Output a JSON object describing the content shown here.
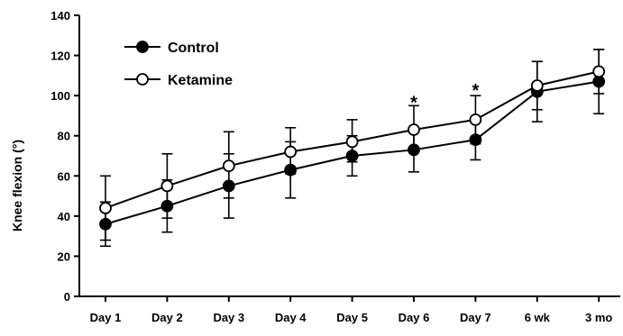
{
  "chart_data": {
    "type": "line",
    "title": "",
    "xlabel": "",
    "ylabel": "Knee flexion (°)",
    "ylim": [
      0,
      140
    ],
    "yticks": [
      0,
      20,
      40,
      60,
      80,
      100,
      120,
      140
    ],
    "categories": [
      "Day 1",
      "Day 2",
      "Day 3",
      "Day 4",
      "Day 5",
      "Day 6",
      "Day 7",
      "6 wk",
      "3 mo"
    ],
    "grid": false,
    "legend_position": "top-left",
    "series": [
      {
        "name": "Control",
        "marker": "filled-circle",
        "color": "#000000",
        "values": [
          36,
          45,
          55,
          63,
          70,
          73,
          78,
          102,
          107
        ],
        "error_low": [
          25,
          32,
          39,
          49,
          60,
          62,
          68,
          87,
          91
        ],
        "error_high": [
          47,
          58,
          71,
          77,
          80,
          84,
          88,
          117,
          123
        ]
      },
      {
        "name": "Ketamine",
        "marker": "open-circle",
        "color": "#000000",
        "values": [
          44,
          55,
          65,
          72,
          77,
          83,
          88,
          105,
          112
        ],
        "error_low": [
          28,
          39,
          49,
          61,
          67,
          72,
          76,
          93,
          101
        ],
        "error_high": [
          60,
          71,
          82,
          84,
          88,
          95,
          100,
          117,
          123
        ]
      }
    ],
    "annotations": [
      {
        "category": "Day 6",
        "text": "*",
        "y": 99
      },
      {
        "category": "Day 7",
        "text": "*",
        "y": 105
      }
    ]
  }
}
